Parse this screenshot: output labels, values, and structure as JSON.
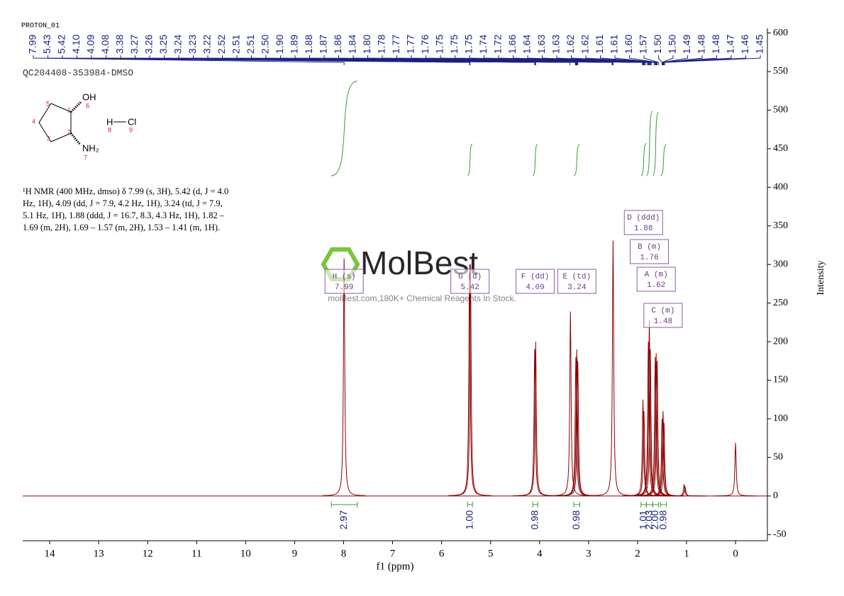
{
  "chart_data": {
    "type": "spectrum",
    "title": "PROTON_01",
    "subtitle": "QC204408-353984-DMSO",
    "x_label": "f1 (ppm)",
    "y_label": "Intensity",
    "xlim": [
      14.55,
      -0.65
    ],
    "ylim": [
      -58,
      606
    ],
    "xticks": [
      14,
      13,
      12,
      11,
      10,
      9,
      8,
      7,
      6,
      5,
      4,
      3,
      2,
      1,
      0
    ],
    "yticks": [
      -50,
      0,
      50,
      100,
      150,
      200,
      250,
      300,
      350,
      400,
      450,
      500,
      550,
      600
    ],
    "color": "#8b0000",
    "integral_color": "#3a9a3a",
    "label_color": "#1a237e",
    "x": [
      7.99,
      5.43,
      5.41,
      4.1,
      4.08,
      3.37,
      3.26,
      3.24,
      3.22,
      2.5,
      1.89,
      1.87,
      1.78,
      1.76,
      1.74,
      1.64,
      1.62,
      1.6,
      1.5,
      1.48,
      1.46,
      1.05,
      1.03,
      0.0
    ],
    "values": [
      308,
      300,
      300,
      190,
      200,
      239,
      180,
      190,
      175,
      331,
      125,
      110,
      200,
      228,
      190,
      180,
      185,
      175,
      100,
      110,
      95,
      15,
      12,
      69
    ],
    "peak_labels": [
      7.99,
      5.43,
      5.42,
      {
        "value": 4.1,
        "label": "4.10"
      },
      4.09,
      4.08,
      3.38,
      3.27,
      3.26,
      3.25,
      3.24,
      3.23,
      3.22,
      2.52,
      2.51,
      2.51,
      {
        "value": 2.5,
        "label": "2.50"
      },
      {
        "value": 1.9,
        "label": "1.90"
      },
      1.89,
      1.88,
      1.87,
      1.86,
      1.84,
      {
        "value": 1.8,
        "label": "1.80"
      },
      1.78,
      1.77,
      1.77,
      1.76,
      1.75,
      1.75,
      1.75,
      1.74,
      1.72,
      1.66,
      1.64,
      1.63,
      1.63,
      1.62,
      1.62,
      1.61,
      1.61,
      {
        "value": 1.6,
        "label": "1.60"
      },
      1.57,
      {
        "value": 1.5,
        "label": "1.50"
      },
      {
        "value": 1.5,
        "label": "1.50"
      },
      1.49,
      1.48,
      1.48,
      1.47,
      1.46,
      1.45
    ],
    "multiplets": [
      {
        "name": "H (s)",
        "value": 7.99
      },
      {
        "name": "G (d)",
        "value": 5.42
      },
      {
        "name": "F (dd)",
        "value": 4.09
      },
      {
        "name": "E (td)",
        "value": 3.24
      },
      {
        "name": "D (ddd)",
        "value": 1.88
      },
      {
        "name": "B (m)",
        "value": 1.76
      },
      {
        "name": "A (m)",
        "value": 1.62
      },
      {
        "name": "C (m)",
        "value": 1.48
      }
    ],
    "integrals": [
      {
        "range": [
          8.25,
          7.72
        ],
        "value": 2.97
      },
      {
        "range": [
          5.47,
          5.37
        ],
        "value": 1,
        "label": "1.00"
      },
      {
        "range": [
          4.14,
          4.04
        ],
        "value": 0.98
      },
      {
        "range": [
          3.3,
          3.18
        ],
        "value": 0.98
      },
      {
        "range": [
          1.93,
          1.82
        ],
        "value": 1.01
      },
      {
        "range": [
          1.82,
          1.69
        ],
        "value": 2.03
      },
      {
        "range": [
          1.69,
          1.57
        ],
        "value": 2,
        "label": "2.00"
      },
      {
        "range": [
          1.53,
          1.41
        ],
        "value": 0.98
      }
    ]
  },
  "description": "¹H NMR (400 MHz, dmso) δ 7.99 (s, 3H), 5.42 (d, J = 4.0 Hz, 1H), 4.09 (dd, J = 7.9, 4.2 Hz, 1H), 3.24 (td, J = 7.9, 5.1 Hz, 1H), 1.88 (ddd, J = 16.7, 8.3, 4.3 Hz, 1H), 1.82 – 1.69 (m, 2H), 1.69 – 1.57 (m, 2H), 1.53 – 1.41 (m, 1H).",
  "structure": {
    "atoms": [
      "OH",
      "NH₂",
      "H",
      "Cl"
    ],
    "locants": [
      "1",
      "2",
      "3",
      "4",
      "5",
      "6",
      "7",
      "8",
      "9"
    ]
  },
  "watermark": {
    "logo": "MolBest",
    "caption": "molBest.com,180K+ Chemical Reagents In Stock."
  }
}
